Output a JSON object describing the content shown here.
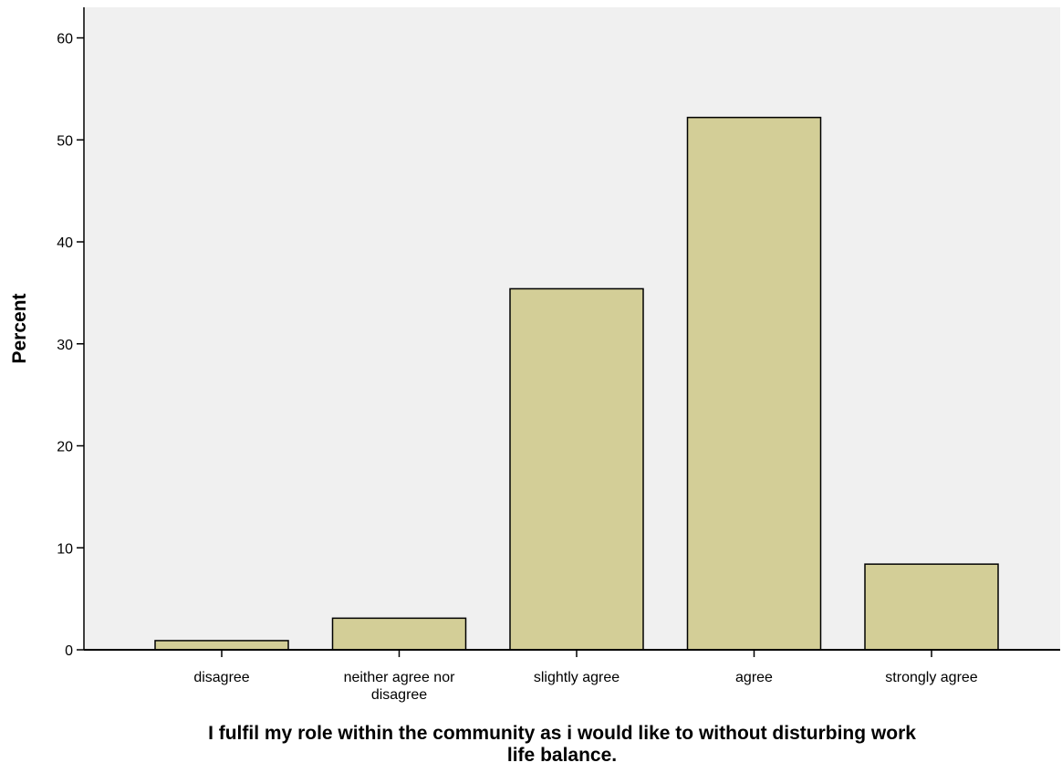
{
  "chart_data": {
    "type": "bar",
    "categories": [
      "disagree",
      "neither agree nor disagree",
      "slightly agree",
      "agree",
      "strongly agree"
    ],
    "category_lines": [
      [
        "disagree"
      ],
      [
        "neither agree nor",
        "disagree"
      ],
      [
        "slightly agree"
      ],
      [
        "agree"
      ],
      [
        "strongly agree"
      ]
    ],
    "values": [
      0.9,
      3.1,
      35.4,
      52.2,
      8.4
    ],
    "title": "",
    "xlabel": "I fulfil my role within the community as i would like to without disturbing work life balance.",
    "xlabel_lines": [
      "I fulfil my role within the community as i would like to without disturbing work",
      "life balance."
    ],
    "ylabel": "Percent",
    "ylim": [
      0,
      63
    ],
    "yticks": [
      0,
      10,
      20,
      30,
      40,
      50,
      60
    ],
    "grid": false,
    "legend": "none",
    "colors": {
      "bar_fill": "#d3ce97",
      "bar_stroke": "#000000",
      "plot_background": "#f0f0f0",
      "page_background": "#ffffff"
    }
  }
}
